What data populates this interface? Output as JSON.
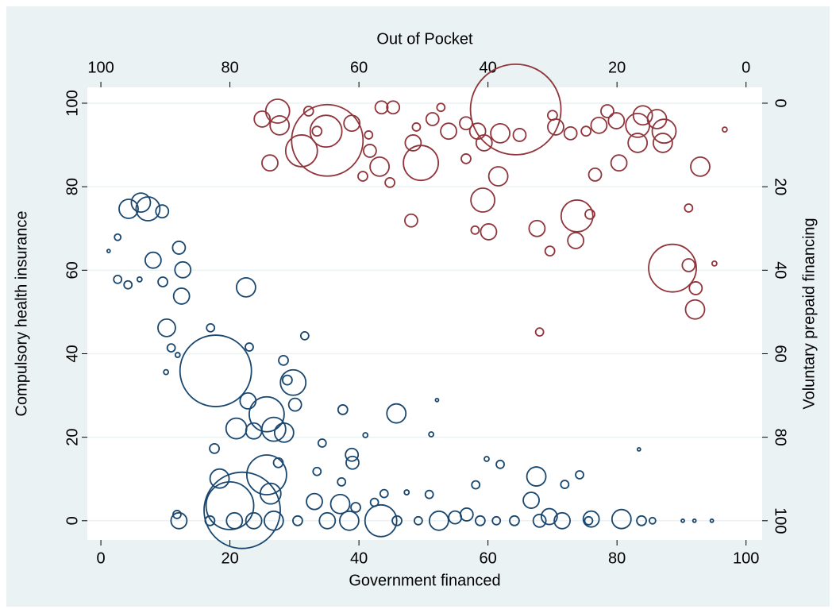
{
  "chart_data": {
    "type": "scatter",
    "x2label": "Out of Pocket",
    "xlabel": "Government financed",
    "ylabel": "Compulsory health insurance",
    "y2label": "Voluntary prepaid financing",
    "xlim": [
      -2.1,
      102.5
    ],
    "ylim": [
      -4.6,
      103.8
    ],
    "x2lim": [
      102.1,
      -2.5
    ],
    "y2lim": [
      -3.8,
      104.6
    ],
    "xticks": [
      0,
      20,
      40,
      60,
      80,
      100
    ],
    "yticks": [
      0,
      20,
      40,
      60,
      80,
      100
    ],
    "x2ticks": [
      100,
      80,
      60,
      40,
      20,
      0
    ],
    "y2ticks": [
      0,
      20,
      40,
      60,
      80,
      100
    ],
    "grid": true,
    "series": [
      {
        "color": "#1a476f",
        "x": [
          1.2,
          2.6,
          4.2,
          4.3,
          2.6,
          6.2,
          7.3,
          9.5,
          6,
          8.1,
          9.6,
          10.2,
          10.9,
          10.1,
          12.1,
          12.7,
          12.5,
          11.9,
          17,
          22.5,
          23,
          17.8,
          17.6,
          21,
          23.7,
          22.8,
          25.7,
          26.8,
          28.4,
          29.8,
          28.9,
          28.3,
          31.6,
          30.1,
          27.5,
          34.3,
          37.5,
          38.9,
          39,
          41,
          45.8,
          52.1,
          51.2,
          33.5,
          37.3,
          18.4,
          25.7,
          26.3,
          21.9,
          20,
          33.1,
          37.1,
          39.5,
          42.4,
          43.9,
          47.4,
          50.9,
          58.1,
          59.8,
          61.9,
          67.5,
          66.7,
          71.9,
          74.2,
          83.4,
          12.1,
          11.8,
          16.9,
          20.7,
          23.7,
          26.8,
          30.5,
          35.1,
          38.5,
          43.4,
          45.9,
          49.2,
          52.4,
          54.9,
          56.7,
          58.8,
          61.3,
          64.1,
          68,
          69.5,
          71.5,
          75.6,
          76,
          80.7,
          83.8,
          85.5,
          90.2,
          92,
          94.7
        ],
        "values": [
          64.6,
          57.8,
          56.5,
          74.7,
          67.9,
          76.2,
          74.7,
          74.1,
          57.8,
          62.4,
          57.2,
          46.2,
          41.4,
          35.6,
          65.4,
          60.1,
          53.8,
          39.7,
          46.2,
          55.9,
          41.6,
          35.9,
          17.3,
          22.1,
          21.5,
          28.7,
          25.5,
          21.9,
          21.1,
          33.1,
          33.7,
          38.4,
          44.3,
          27.8,
          13.9,
          18.6,
          26.6,
          15.8,
          13.9,
          20.5,
          25.7,
          28.9,
          20.7,
          11.8,
          9.3,
          10.1,
          11,
          6.5,
          2.5,
          3.6,
          4.6,
          4,
          3.2,
          4.4,
          6.5,
          6.8,
          6.3,
          8.6,
          14.8,
          13.5,
          10.6,
          4.9,
          8.7,
          11,
          17.1,
          0,
          1.5,
          0,
          0,
          0,
          0,
          0,
          0,
          0,
          0,
          0,
          0,
          0,
          0.8,
          1.5,
          0,
          0,
          0,
          0,
          1,
          0,
          0,
          0.4,
          0.4,
          0,
          0,
          0,
          0,
          0
        ],
        "sizes": [
          4,
          25,
          25,
          144,
          16,
          144,
          225,
          64,
          9,
          100,
          36,
          121,
          25,
          9,
          64,
          100,
          100,
          9,
          25,
          144,
          25,
          2025,
          36,
          169,
          100,
          100,
          484,
          225,
          144,
          256,
          36,
          36,
          25,
          64,
          36,
          25,
          36,
          64,
          64,
          9,
          144,
          4,
          9,
          25,
          25,
          144,
          625,
          169,
          2304,
          900,
          100,
          144,
          36,
          25,
          25,
          9,
          25,
          25,
          9,
          25,
          144,
          100,
          25,
          25,
          4,
          100,
          25,
          36,
          100,
          100,
          144,
          36,
          100,
          144,
          400,
          36,
          25,
          144,
          64,
          64,
          36,
          25,
          36,
          64,
          100,
          100,
          25,
          100,
          144,
          36,
          16,
          4,
          4,
          4
        ]
      },
      {
        "color": "#90353b",
        "axis": "y2",
        "xaxis": "x2",
        "x": [
          64.9,
          35.7,
          11.4,
          26.2,
          68.9,
          65.1,
          72.6,
          72.3,
          75,
          73.8,
          50.4,
          51.6,
          56.5,
          54.7,
          61.1,
          58.3,
          56.8,
          55.2,
          51.9,
          48.6,
          47.3,
          43.4,
          41.6,
          40.8,
          38.4,
          39.9,
          40.6,
          42,
          32,
          32.4,
          30.4,
          26.4,
          24.2,
          23.4,
          22.8,
          21.5,
          19.7,
          20.1,
          16.8,
          16.8,
          16,
          13.8,
          12.9,
          12.7,
          7.1,
          7.9,
          7.8,
          8.9,
          8.9,
          4.9,
          3.3,
          35.1,
          38.1,
          29.5,
          27.2,
          30,
          24.8,
          46.1,
          51.1,
          58.5,
          66.5,
          67.8,
          59.4,
          43.4
        ],
        "values": [
          8.9,
          1.5,
          39.5,
          27,
          11.4,
          6.7,
          1.9,
          5.3,
          3.8,
          14.3,
          14.3,
          9.5,
          1,
          1,
          4.8,
          11.4,
          15.2,
          19,
          28.1,
          3.8,
          1,
          4.8,
          6.7,
          23.2,
          17.5,
          30.8,
          9.5,
          30.4,
          54.8,
          30,
          35.4,
          32.9,
          26.6,
          17.1,
          5.3,
          1.9,
          14.3,
          4.2,
          9.5,
          5.3,
          2.9,
          3.8,
          9.5,
          6.7,
          15.2,
          49.4,
          44.3,
          38.8,
          25.1,
          38.4,
          6.3,
          7.6,
          7.2,
          5.7,
          7.2,
          2.9,
          6.7,
          6.7,
          5.7,
          7.6,
          6.7,
          1.9,
          17.5,
          13.3
        ],
        "sizes": [
          2025,
          3249,
          900,
          400,
          400,
          400,
          225,
          144,
          100,
          100,
          484,
          100,
          64,
          64,
          100,
          64,
          144,
          36,
          64,
          64,
          25,
          64,
          100,
          225,
          144,
          100,
          100,
          25,
          25,
          100,
          36,
          100,
          36,
          64,
          100,
          64,
          100,
          100,
          144,
          225,
          144,
          144,
          144,
          225,
          144,
          144,
          64,
          64,
          25,
          9,
          9,
          64,
          144,
          100,
          64,
          36,
          36,
          100,
          25,
          25,
          36,
          36,
          36,
          36
        ]
      }
    ]
  }
}
